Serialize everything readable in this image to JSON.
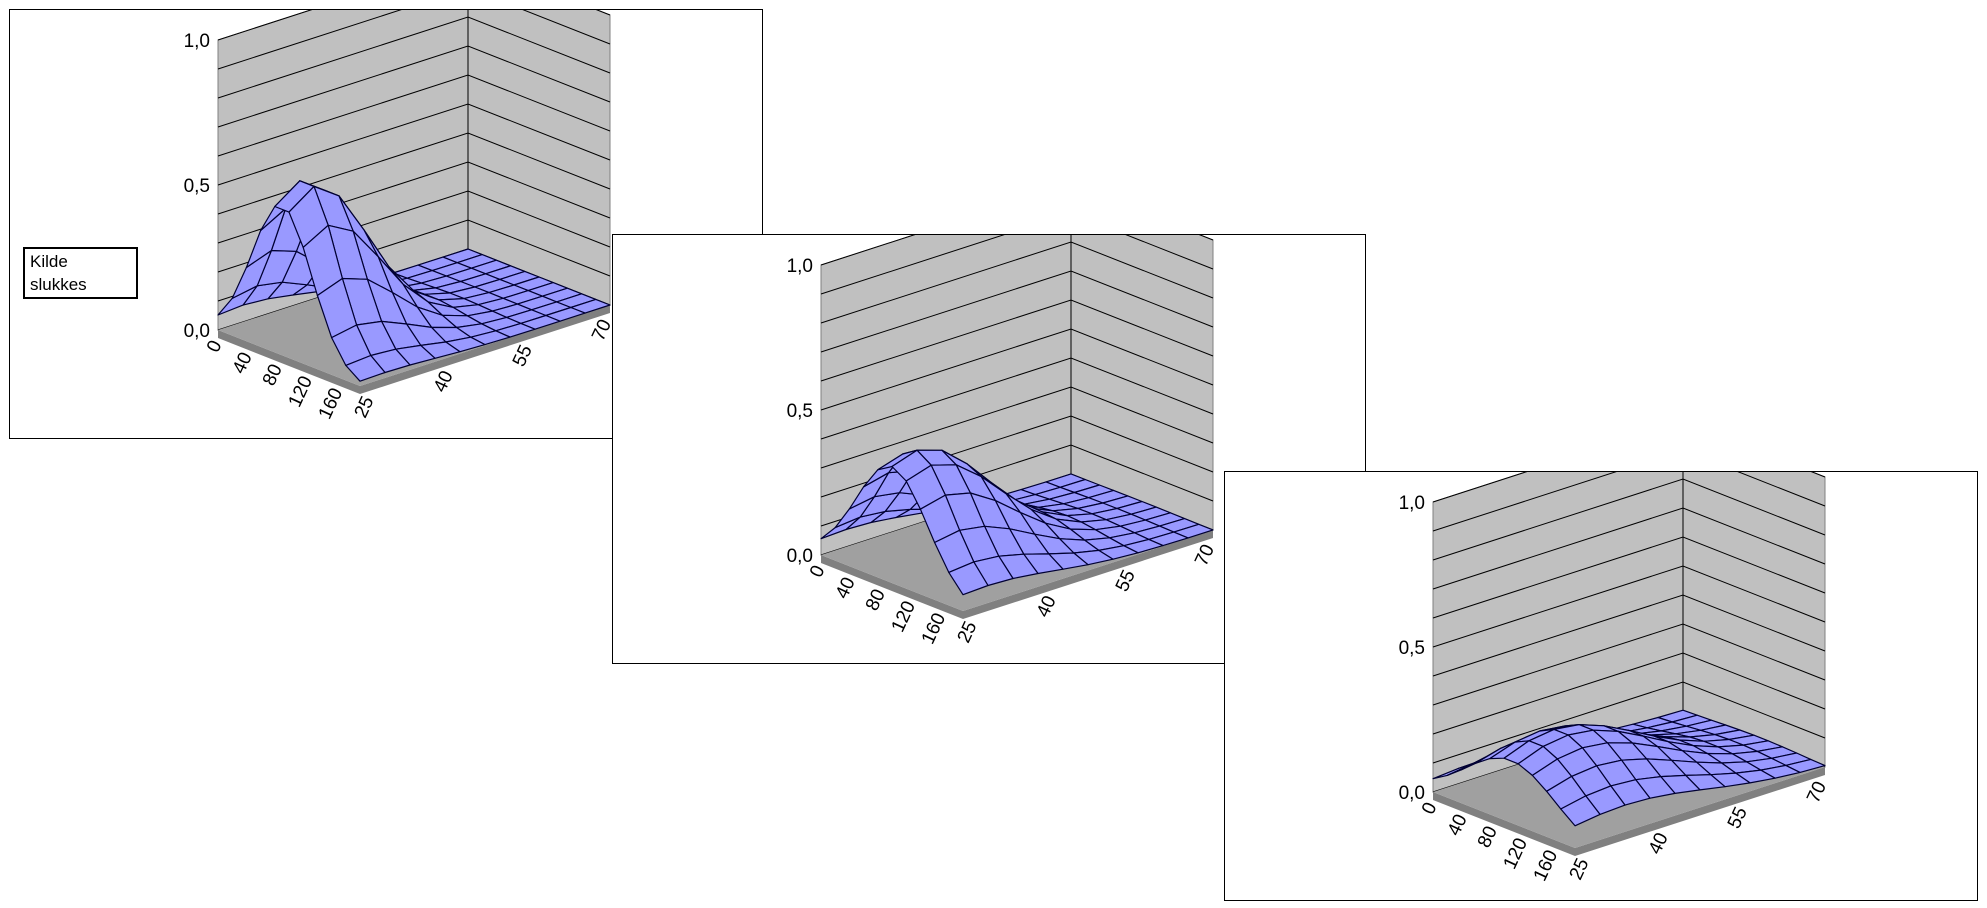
{
  "chart_data": [
    {
      "type": "surface",
      "annotation": "Kilde\nslukkes",
      "zlim": [
        0,
        1.0
      ],
      "z_ticks": [
        "0,0",
        "0,5",
        "1,0"
      ],
      "x_ticks": [
        "0",
        "40",
        "80",
        "120",
        "160"
      ],
      "y_ticks": [
        "25",
        "40",
        "55",
        "70"
      ],
      "peak": {
        "x": 0.45,
        "y": 0.1,
        "value": 0.58
      },
      "spread": {
        "x": 0.9,
        "y": 0.9
      },
      "surface_color": "#9999FF"
    },
    {
      "type": "surface",
      "zlim": [
        0,
        1.0
      ],
      "z_ticks": [
        "0,0",
        "0,5",
        "1,0"
      ],
      "x_ticks": [
        "0",
        "40",
        "80",
        "120",
        "160"
      ],
      "y_ticks": [
        "25",
        "40",
        "55",
        "70"
      ],
      "peak": {
        "x": 0.5,
        "y": 0.1,
        "value": 0.43
      },
      "spread": {
        "x": 1.3,
        "y": 1.5
      },
      "surface_color": "#9999FF"
    },
    {
      "type": "surface",
      "zlim": [
        0,
        1.0
      ],
      "z_ticks": [
        "0,0",
        "0,5",
        "1,0"
      ],
      "x_ticks": [
        "0",
        "40",
        "80",
        "120",
        "160"
      ],
      "y_ticks": [
        "25",
        "40",
        "55",
        "70"
      ],
      "peak": {
        "x": 0.55,
        "y": 0.2,
        "value": 0.26
      },
      "spread": {
        "x": 2.0,
        "y": 2.2
      },
      "surface_color": "#9999FF"
    }
  ]
}
